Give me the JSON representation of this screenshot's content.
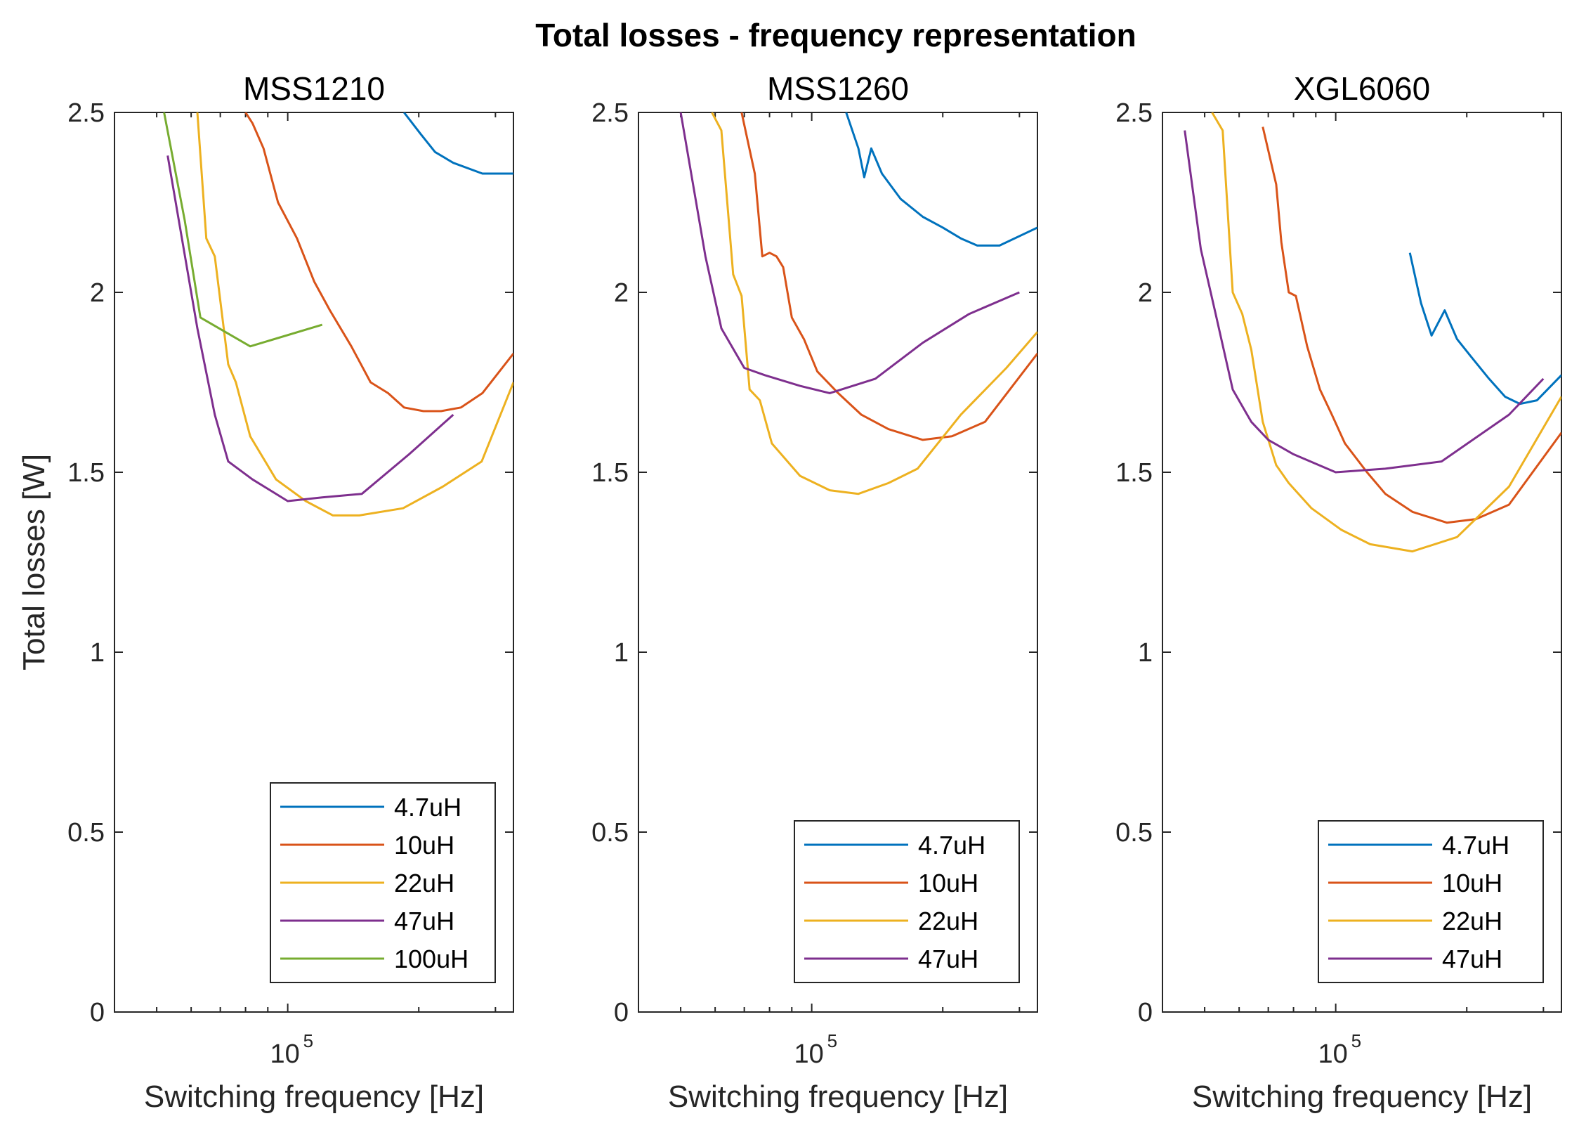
{
  "figure_title": "Total losses - frequency representation",
  "y_tick_labels": [
    "0",
    "0.5",
    "1",
    "1.5",
    "2",
    "2.5"
  ],
  "x_tick_label_base": "10",
  "x_tick_label_exponent": "5",
  "colors": {
    "4.7uH": "#0072BD",
    "10uH": "#D95319",
    "22uH": "#EDB120",
    "47uH": "#7E2F8E",
    "100uH": "#77AC30",
    "axes": "#262626"
  },
  "chart_data": [
    {
      "type": "line",
      "title": "MSS1210",
      "xlabel": "Switching frequency [Hz]",
      "ylabel": "Total losses [W]",
      "x_scale": "log",
      "xlim": [
        40000,
        330000
      ],
      "ylim": [
        0,
        2.5
      ],
      "y_ticks": [
        0,
        0.5,
        1,
        1.5,
        2,
        2.5
      ],
      "x_ticks": [
        100000
      ],
      "grid": false,
      "legend": "bottom-right",
      "series": [
        {
          "name": "4.7uH",
          "color": "#0072BD",
          "x": [
            185000,
            202000,
            218000,
            240000,
            280000,
            330000
          ],
          "y": [
            2.5,
            2.44,
            2.39,
            2.36,
            2.33,
            2.33
          ]
        },
        {
          "name": "10uH",
          "color": "#D95319",
          "x": [
            80000,
            83000,
            88000,
            95000,
            105000,
            115000,
            125000,
            140000,
            155000,
            170000,
            185000,
            205000,
            225000,
            250000,
            280000,
            330000
          ],
          "y": [
            2.5,
            2.47,
            2.4,
            2.25,
            2.15,
            2.03,
            1.95,
            1.85,
            1.75,
            1.72,
            1.68,
            1.67,
            1.67,
            1.68,
            1.72,
            1.83
          ]
        },
        {
          "name": "22uH",
          "color": "#EDB120",
          "x": [
            62000,
            65000,
            68000,
            73000,
            76000,
            82000,
            94000,
            110000,
            127000,
            146000,
            184000,
            227000,
            279000,
            330000
          ],
          "y": [
            2.5,
            2.15,
            2.1,
            1.8,
            1.75,
            1.6,
            1.48,
            1.42,
            1.38,
            1.38,
            1.4,
            1.46,
            1.53,
            1.75
          ]
        },
        {
          "name": "47uH",
          "color": "#7E2F8E",
          "x": [
            53000,
            62000,
            68000,
            73000,
            83000,
            100000,
            120000,
            148000,
            190000,
            240000
          ],
          "y": [
            2.38,
            1.9,
            1.66,
            1.53,
            1.48,
            1.42,
            1.43,
            1.44,
            1.55,
            1.66
          ]
        },
        {
          "name": "100uH",
          "color": "#77AC30",
          "x": [
            52000,
            58000,
            63000,
            82000,
            120000
          ],
          "y": [
            2.5,
            2.2,
            1.93,
            1.85,
            1.91
          ]
        }
      ]
    },
    {
      "type": "line",
      "title": "MSS1260",
      "xlabel": "Switching frequency [Hz]",
      "ylabel": "",
      "x_scale": "log",
      "xlim": [
        40000,
        330000
      ],
      "ylim": [
        0,
        2.5
      ],
      "y_ticks": [
        0,
        0.5,
        1,
        1.5,
        2,
        2.5
      ],
      "x_ticks": [
        100000
      ],
      "grid": false,
      "legend": "bottom-right",
      "series": [
        {
          "name": "4.7uH",
          "color": "#0072BD",
          "x": [
            120000,
            128000,
            132000,
            137000,
            145000,
            160000,
            180000,
            200000,
            220000,
            240000,
            270000,
            330000
          ],
          "y": [
            2.5,
            2.4,
            2.32,
            2.4,
            2.33,
            2.26,
            2.21,
            2.18,
            2.15,
            2.13,
            2.13,
            2.18
          ]
        },
        {
          "name": "10uH",
          "color": "#D95319",
          "x": [
            69000,
            74000,
            77000,
            80000,
            83000,
            86000,
            90000,
            96000,
            103000,
            115000,
            130000,
            150000,
            180000,
            210000,
            250000,
            330000
          ],
          "y": [
            2.5,
            2.33,
            2.1,
            2.11,
            2.1,
            2.07,
            1.93,
            1.87,
            1.78,
            1.72,
            1.66,
            1.62,
            1.59,
            1.6,
            1.64,
            1.83
          ]
        },
        {
          "name": "22uH",
          "color": "#EDB120",
          "x": [
            59000,
            62000,
            66000,
            69000,
            72000,
            76000,
            81000,
            94000,
            110000,
            128000,
            150000,
            175000,
            220000,
            280000,
            330000
          ],
          "y": [
            2.5,
            2.45,
            2.05,
            1.99,
            1.73,
            1.7,
            1.58,
            1.49,
            1.45,
            1.44,
            1.47,
            1.51,
            1.66,
            1.79,
            1.89
          ]
        },
        {
          "name": "47uH",
          "color": "#7E2F8E",
          "x": [
            50000,
            57000,
            62000,
            70000,
            78000,
            94000,
            110000,
            140000,
            180000,
            230000,
            300000
          ],
          "y": [
            2.5,
            2.1,
            1.9,
            1.79,
            1.77,
            1.74,
            1.72,
            1.76,
            1.86,
            1.94,
            2.0
          ]
        }
      ]
    },
    {
      "type": "line",
      "title": "XGL6060",
      "xlabel": "Switching frequency [Hz]",
      "ylabel": "",
      "x_scale": "log",
      "xlim": [
        40000,
        330000
      ],
      "ylim": [
        0,
        2.5
      ],
      "y_ticks": [
        0,
        0.5,
        1,
        1.5,
        2,
        2.5
      ],
      "x_ticks": [
        100000
      ],
      "grid": false,
      "legend": "bottom-right",
      "series": [
        {
          "name": "4.7uH",
          "color": "#0072BD",
          "x": [
            148000,
            157000,
            166000,
            178000,
            190000,
            205000,
            225000,
            245000,
            265000,
            290000,
            330000
          ],
          "y": [
            2.11,
            1.97,
            1.88,
            1.95,
            1.87,
            1.82,
            1.76,
            1.71,
            1.69,
            1.7,
            1.77
          ]
        },
        {
          "name": "10uH",
          "color": "#D95319",
          "x": [
            68000,
            73000,
            75000,
            78000,
            81000,
            86000,
            92000,
            98000,
            105000,
            118000,
            130000,
            150000,
            180000,
            210000,
            250000,
            330000
          ],
          "y": [
            2.46,
            2.3,
            2.14,
            2.0,
            1.99,
            1.85,
            1.73,
            1.66,
            1.58,
            1.5,
            1.44,
            1.39,
            1.36,
            1.37,
            1.41,
            1.61
          ]
        },
        {
          "name": "22uH",
          "color": "#EDB120",
          "x": [
            52000,
            55000,
            58000,
            61000,
            64000,
            68000,
            73000,
            78000,
            88000,
            103000,
            120000,
            150000,
            190000,
            250000,
            330000
          ],
          "y": [
            2.5,
            2.45,
            2.0,
            1.94,
            1.84,
            1.64,
            1.52,
            1.47,
            1.4,
            1.34,
            1.3,
            1.28,
            1.32,
            1.46,
            1.71
          ]
        },
        {
          "name": "47uH",
          "color": "#7E2F8E",
          "x": [
            45000,
            49000,
            53000,
            58000,
            64000,
            70000,
            80000,
            100000,
            130000,
            175000,
            250000,
            300000
          ],
          "y": [
            2.45,
            2.12,
            1.94,
            1.73,
            1.64,
            1.59,
            1.55,
            1.5,
            1.51,
            1.53,
            1.66,
            1.76
          ]
        }
      ]
    }
  ]
}
